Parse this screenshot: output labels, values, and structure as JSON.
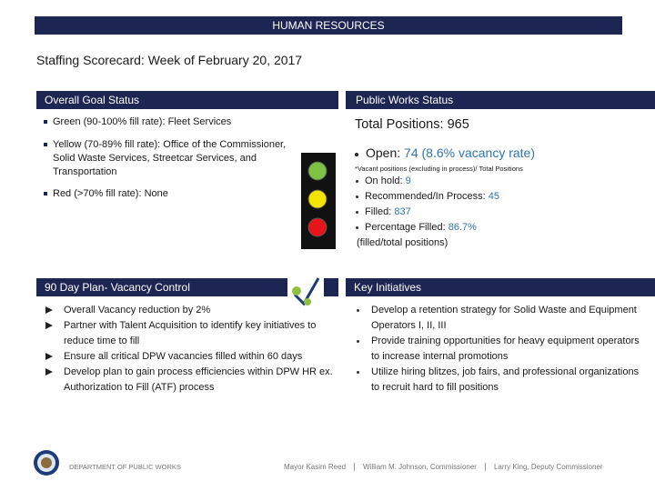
{
  "header": {
    "banner": "HUMAN RESOURCES",
    "title": "Staffing Scorecard: Week of February 20, 2017"
  },
  "overall_goal_status": {
    "heading": "Overall  Goal Status",
    "items": [
      {
        "label": "Green (90-100% fill rate):",
        "text": "Fleet Services"
      },
      {
        "label": "Yellow (70-89% fill rate):",
        "text": "Office of the Commissioner, Solid Waste Services, Streetcar Services, and Transportation"
      },
      {
        "label": "Red (>70% fill rate):",
        "text": "None"
      }
    ]
  },
  "public_works_status": {
    "heading": "Public Works  Status",
    "total_label": "Total Positions:",
    "total_value": "965",
    "open_label": "Open:",
    "open_value": "74 (8.6% vacancy rate)",
    "note": "*Vacant positions (excluding in process)/ Total Positions",
    "items": [
      {
        "label": "On hold:",
        "value": "9"
      },
      {
        "label": "Recommended/In Process:",
        "value": "45"
      },
      {
        "label": "Filled:",
        "value": "837"
      },
      {
        "label": "Percentage Filled:",
        "value": "86.7%"
      }
    ],
    "footnote": "(filled/total positions)"
  },
  "plan": {
    "heading": "90 Day Plan- Vacancy Control",
    "items": [
      "Overall Vacancy reduction by 2%",
      "Partner with Talent Acquisition to identify key initiatives to reduce time to fill",
      "Ensure all critical DPW vacancies filled within 60 days",
      "Develop plan to gain process efficiencies within DPW HR ex. Authorization to Fill (ATF) process"
    ]
  },
  "key_initiatives": {
    "heading": "Key Initiatives",
    "items": [
      "Develop a retention strategy for Solid Waste and Equipment Operators I, II, III",
      "Provide training opportunities for heavy equipment operators to increase internal promotions",
      "Utilize hiring blitzes, job fairs, and professional organizations to recruit hard to fill positions"
    ]
  },
  "footer": {
    "department": "DEPARTMENT OF PUBLIC WORKS",
    "names": [
      "Mayor Kasim Reed",
      "William M. Johnson, Commissioner",
      "Larry King, Deputy Commissioner"
    ]
  }
}
